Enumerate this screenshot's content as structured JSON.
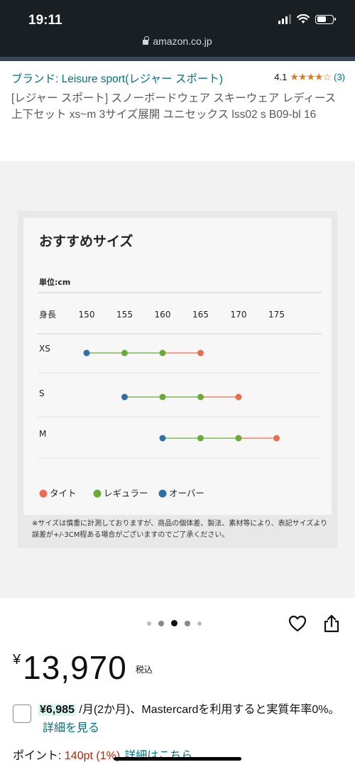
{
  "status_bar": {
    "time": "19:11",
    "url": "amazon.co.jp"
  },
  "product": {
    "brand": "ブランド: Leisure sport(レジャー スポート)",
    "rating_value": "4.1",
    "rating_stars": "★★★★☆",
    "rating_count": "(3)",
    "title": "[レジャー スポート] スノーボードウェア スキーウェア レディース 上下セット xs~m 3サイズ展開 ユニセックス lss02 s B09-bl 16"
  },
  "size_chart": {
    "title": "おすすめサイズ",
    "unit_label": "単位:cm",
    "height_label": "身長",
    "heights": [
      "150",
      "155",
      "160",
      "165",
      "170",
      "175"
    ],
    "rows": [
      {
        "size": "XS",
        "over": 150,
        "regular": [
          155,
          160
        ],
        "tight": 165
      },
      {
        "size": "S",
        "over": 155,
        "regular": [
          160,
          165
        ],
        "tight": 170
      },
      {
        "size": "M",
        "over": 160,
        "regular": [
          165,
          170
        ],
        "tight": 175
      }
    ],
    "legend": {
      "tight": "タイト",
      "regular": "レギュラー",
      "over": "オーバー"
    },
    "colors": {
      "tight": "#e76f51",
      "regular": "#6aaa3a",
      "over": "#2f6fa7"
    },
    "note": "※サイズは慎重に計測しておりますが、商品の個体差、製法、素材等により、表記サイズより誤差が+/-3CM程ある場合がございますのでご了承ください。"
  },
  "gallery": {
    "dot_count": 5,
    "active_dot": 2
  },
  "price": {
    "symbol": "¥",
    "value": "13,970",
    "tax_label": "税込"
  },
  "installment": {
    "amount": "¥6,985",
    "text": " /月(2か月)、Mastercardを利用すると実質年率0%。",
    "link": "詳細を見る"
  },
  "points": {
    "label": "ポイント: ",
    "value": "140pt",
    "percent": " (1%)",
    "link": "詳細はこちら"
  }
}
